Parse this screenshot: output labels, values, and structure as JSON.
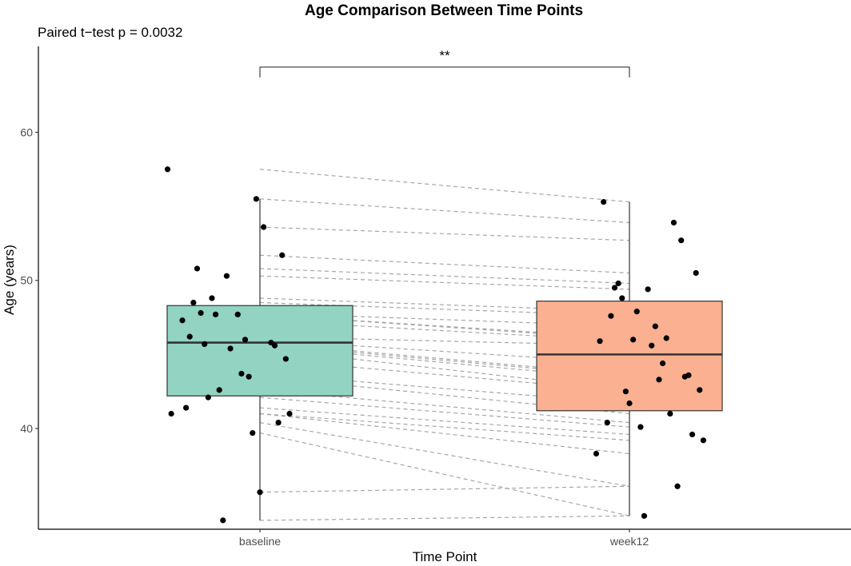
{
  "chart_data": {
    "type": "boxplot",
    "title": "Age Comparison Between Time Points",
    "subtitle": "Paired t−test p = 0.0032",
    "xlabel": "Time Point",
    "ylabel": "Age (years)",
    "categories": [
      "baseline",
      "week12"
    ],
    "ylim": [
      33.2,
      65.8
    ],
    "yticks": [
      40,
      50,
      60
    ],
    "grid": false,
    "legend": "none",
    "boxes": [
      {
        "category": "baseline",
        "q1": 42.2,
        "median": 45.8,
        "q3": 48.3,
        "whisker_low": 33.8,
        "whisker_high": 55.5,
        "color": "#93d3c1"
      },
      {
        "category": "week12",
        "q1": 41.2,
        "median": 45.0,
        "q3": 48.6,
        "whisker_low": 34.1,
        "whisker_high": 55.3,
        "color": "#fbb091"
      }
    ],
    "significance": {
      "label": "**",
      "y": 64.4,
      "drop_to": 63.7
    },
    "baseline_points": [
      {
        "x": 0.76,
        "y": 41.0
      },
      {
        "x": 0.79,
        "y": 47.3
      },
      {
        "x": 0.8,
        "y": 41.4
      },
      {
        "x": 0.81,
        "y": 46.2
      },
      {
        "x": 0.82,
        "y": 48.5
      },
      {
        "x": 0.83,
        "y": 50.8
      },
      {
        "x": 0.84,
        "y": 47.8
      },
      {
        "x": 0.85,
        "y": 45.7
      },
      {
        "x": 0.86,
        "y": 42.1
      },
      {
        "x": 0.87,
        "y": 48.8
      },
      {
        "x": 0.88,
        "y": 47.7
      },
      {
        "x": 0.89,
        "y": 42.6
      },
      {
        "x": 0.9,
        "y": 33.8
      },
      {
        "x": 0.91,
        "y": 50.3
      },
      {
        "x": 0.92,
        "y": 45.4
      },
      {
        "x": 0.94,
        "y": 47.7
      },
      {
        "x": 0.95,
        "y": 43.7
      },
      {
        "x": 0.96,
        "y": 46.0
      },
      {
        "x": 0.97,
        "y": 43.5
      },
      {
        "x": 0.98,
        "y": 39.7
      },
      {
        "x": 0.99,
        "y": 55.5
      },
      {
        "x": 1.0,
        "y": 35.7
      },
      {
        "x": 1.01,
        "y": 53.6
      },
      {
        "x": 1.03,
        "y": 45.8
      },
      {
        "x": 1.04,
        "y": 45.6
      },
      {
        "x": 1.05,
        "y": 40.4
      },
      {
        "x": 1.06,
        "y": 51.7
      },
      {
        "x": 1.07,
        "y": 44.7
      },
      {
        "x": 1.08,
        "y": 41.0
      },
      {
        "x": 0.75,
        "y": 57.5
      }
    ],
    "week12_points": [
      {
        "x": 1.91,
        "y": 38.3
      },
      {
        "x": 1.92,
        "y": 45.9
      },
      {
        "x": 1.93,
        "y": 55.3
      },
      {
        "x": 1.94,
        "y": 40.4
      },
      {
        "x": 1.95,
        "y": 47.6
      },
      {
        "x": 1.96,
        "y": 49.5
      },
      {
        "x": 1.97,
        "y": 49.8
      },
      {
        "x": 1.98,
        "y": 48.8
      },
      {
        "x": 1.99,
        "y": 42.5
      },
      {
        "x": 2.0,
        "y": 41.7
      },
      {
        "x": 2.01,
        "y": 46.0
      },
      {
        "x": 2.02,
        "y": 47.9
      },
      {
        "x": 2.03,
        "y": 40.1
      },
      {
        "x": 2.04,
        "y": 34.1
      },
      {
        "x": 2.05,
        "y": 49.4
      },
      {
        "x": 2.06,
        "y": 45.6
      },
      {
        "x": 2.07,
        "y": 46.9
      },
      {
        "x": 2.08,
        "y": 43.3
      },
      {
        "x": 2.09,
        "y": 44.4
      },
      {
        "x": 2.1,
        "y": 46.1
      },
      {
        "x": 2.11,
        "y": 41.0
      },
      {
        "x": 2.12,
        "y": 53.9
      },
      {
        "x": 2.13,
        "y": 36.1
      },
      {
        "x": 2.14,
        "y": 52.7
      },
      {
        "x": 2.15,
        "y": 43.5
      },
      {
        "x": 2.16,
        "y": 43.6
      },
      {
        "x": 2.17,
        "y": 39.6
      },
      {
        "x": 2.18,
        "y": 50.5
      },
      {
        "x": 2.19,
        "y": 42.6
      },
      {
        "x": 2.2,
        "y": 39.2
      }
    ],
    "paired_lines": [
      {
        "baseline": 57.5,
        "week12": 55.3
      },
      {
        "baseline": 55.5,
        "week12": 53.9
      },
      {
        "baseline": 53.6,
        "week12": 52.7
      },
      {
        "baseline": 51.7,
        "week12": 50.5
      },
      {
        "baseline": 50.8,
        "week12": 49.8
      },
      {
        "baseline": 50.3,
        "week12": 49.4
      },
      {
        "baseline": 48.8,
        "week12": 47.9
      },
      {
        "baseline": 48.5,
        "week12": 47.6
      },
      {
        "baseline": 47.8,
        "week12": 46.9
      },
      {
        "baseline": 47.7,
        "week12": 46.1
      },
      {
        "baseline": 47.7,
        "week12": 46.0
      },
      {
        "baseline": 47.3,
        "week12": 45.9
      },
      {
        "baseline": 46.2,
        "week12": 45.6
      },
      {
        "baseline": 46.0,
        "week12": 44.4
      },
      {
        "baseline": 45.8,
        "week12": 43.6
      },
      {
        "baseline": 45.7,
        "week12": 43.5
      },
      {
        "baseline": 45.6,
        "week12": 43.3
      },
      {
        "baseline": 45.4,
        "week12": 42.6
      },
      {
        "baseline": 44.7,
        "week12": 42.5
      },
      {
        "baseline": 43.7,
        "week12": 41.7
      },
      {
        "baseline": 43.5,
        "week12": 41.0
      },
      {
        "baseline": 42.6,
        "week12": 40.4
      },
      {
        "baseline": 42.1,
        "week12": 40.1
      },
      {
        "baseline": 41.4,
        "week12": 39.6
      },
      {
        "baseline": 41.0,
        "week12": 39.2
      },
      {
        "baseline": 41.0,
        "week12": 38.3
      },
      {
        "baseline": 40.4,
        "week12": 36.1
      },
      {
        "baseline": 39.7,
        "week12": 34.1
      },
      {
        "baseline": 35.7,
        "week12": 36.1
      },
      {
        "baseline": 33.8,
        "week12": 34.1
      }
    ]
  }
}
